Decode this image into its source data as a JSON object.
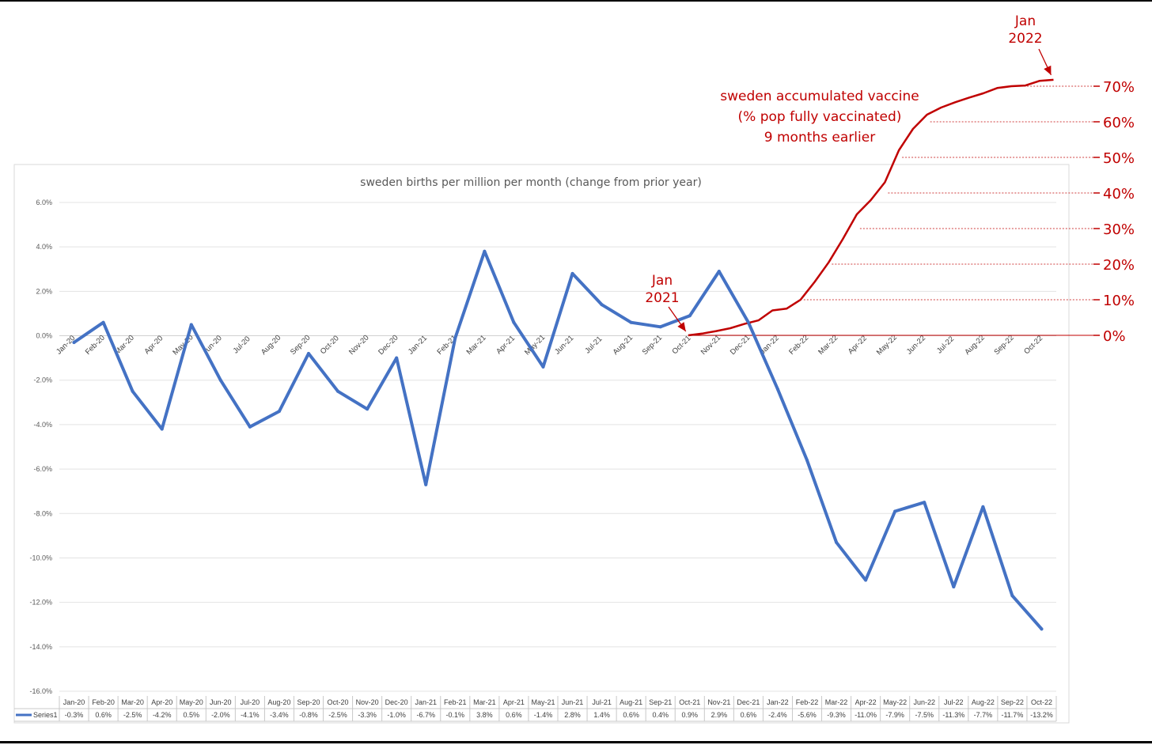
{
  "chart_data": [
    {
      "type": "line",
      "title": "sweden births per million per month (change from prior year)",
      "categories": [
        "Jan-20",
        "Feb-20",
        "Mar-20",
        "Apr-20",
        "May-20",
        "Jun-20",
        "Jul-20",
        "Aug-20",
        "Sep-20",
        "Oct-20",
        "Nov-20",
        "Dec-20",
        "Jan-21",
        "Feb-21",
        "Mar-21",
        "Apr-21",
        "May-21",
        "Jun-21",
        "Jul-21",
        "Aug-21",
        "Sep-21",
        "Oct-21",
        "Nov-21",
        "Dec-21",
        "Jan-22",
        "Feb-22",
        "Mar-22",
        "Apr-22",
        "May-22",
        "Jun-22",
        "Jul-22",
        "Aug-22",
        "Sep-22",
        "Oct-22"
      ],
      "series": [
        {
          "name": "Series1",
          "values": [
            -0.3,
            0.6,
            -2.5,
            -4.2,
            0.5,
            -2.0,
            -4.1,
            -3.4,
            -0.8,
            -2.5,
            -3.3,
            -1.0,
            -6.7,
            -0.1,
            3.8,
            0.6,
            -1.4,
            2.8,
            1.4,
            0.6,
            0.4,
            0.9,
            2.9,
            0.6,
            -2.4,
            -5.6,
            -9.3,
            -11.0,
            -7.9,
            -7.5,
            -11.3,
            -7.7,
            -11.7,
            -13.2
          ],
          "labels": [
            "-0.3%",
            "0.6%",
            "-2.5%",
            "-4.2%",
            "0.5%",
            "-2.0%",
            "-4.1%",
            "-3.4%",
            "-0.8%",
            "-2.5%",
            "-3.3%",
            "-1.0%",
            "-6.7%",
            "-0.1%",
            "3.8%",
            "0.6%",
            "-1.4%",
            "2.8%",
            "1.4%",
            "0.6%",
            "0.4%",
            "0.9%",
            "2.9%",
            "0.6%",
            "-2.4%",
            "-5.6%",
            "-9.3%",
            "-11.0%",
            "-7.9%",
            "-7.5%",
            "-11.3%",
            "-7.7%",
            "-11.7%",
            "-13.2%"
          ],
          "color": "#4472c4"
        }
      ],
      "y_ticks": [
        "6.0%",
        "4.0%",
        "2.0%",
        "0.0%",
        "-2.0%",
        "-4.0%",
        "-6.0%",
        "-8.0%",
        "-10.0%",
        "-12.0%",
        "-14.0%",
        "-16.0%"
      ],
      "ylim": [
        -16,
        6
      ],
      "grid": true,
      "data_table": true
    },
    {
      "type": "line",
      "title": "sweden accumulated vaccine",
      "subtitle_lines": [
        "(% pop fully vaccinated)",
        "9 months earlier"
      ],
      "x_start_category": "Oct-21",
      "x_end_category": "Oct-22",
      "x_start_label": "Jan 2021",
      "x_end_label": "Jan 2022",
      "values": [
        0,
        0.5,
        1.2,
        2.0,
        3.2,
        4.2,
        7.0,
        7.5,
        10.0,
        15.0,
        20.5,
        27.0,
        34.0,
        38.0,
        43.0,
        52.0,
        58.0,
        62.0,
        64.0,
        65.5,
        66.8,
        68.0,
        69.5,
        70.0,
        70.2,
        71.5,
        71.8
      ],
      "y_ticks": [
        "70%",
        "60%",
        "50%",
        "40%",
        "30%",
        "20%",
        "10%",
        "0%"
      ],
      "ylim": [
        0,
        70
      ],
      "color": "#c00000"
    }
  ]
}
